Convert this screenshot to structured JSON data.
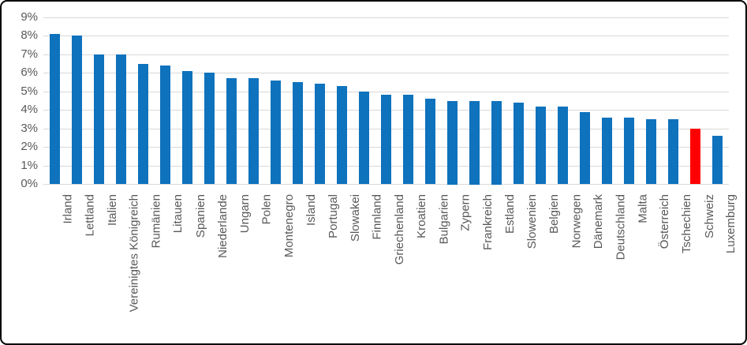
{
  "chart_data": {
    "type": "bar",
    "title": "",
    "xlabel": "",
    "ylabel": "",
    "categories": [
      "Irland",
      "Lettland",
      "Italien",
      "Vereinigtes Königreich",
      "Rumänien",
      "Litauen",
      "Spanien",
      "Niederlande",
      "Ungarn",
      "Polen",
      "Montenegro",
      "Island",
      "Portugal",
      "Slowakei",
      "Finnland",
      "Griechenland",
      "Kroatien",
      "Bulgarien",
      "Zypern",
      "Frankreich",
      "Estland",
      "Slowenien",
      "Belgien",
      "Norwegen",
      "Dänemark",
      "Deutschland",
      "Malta",
      "Österreich",
      "Tschechien",
      "Schweiz",
      "Luxemburg"
    ],
    "values": [
      8.1,
      8.0,
      7.0,
      7.0,
      6.5,
      6.4,
      6.1,
      6.0,
      5.7,
      5.7,
      5.6,
      5.5,
      5.4,
      5.3,
      5.0,
      4.8,
      4.8,
      4.6,
      4.5,
      4.5,
      4.5,
      4.4,
      4.2,
      4.2,
      3.9,
      3.6,
      3.6,
      3.5,
      3.5,
      3.0,
      2.6
    ],
    "value_unit": "%",
    "highlight_category": "Schweiz",
    "y_ticks": [
      "0%",
      "1%",
      "2%",
      "3%",
      "4%",
      "5%",
      "6%",
      "7%",
      "8%",
      "9%"
    ],
    "ylim": [
      0,
      9
    ],
    "grid": "horizontal",
    "legend": "none",
    "colors": {
      "bar": "#0e72bd",
      "highlight_bar": "#ff0000",
      "gridline": "#d9d9d9",
      "axis_text": "#595959",
      "frame_border": "#000000",
      "background": "#ffffff"
    }
  }
}
